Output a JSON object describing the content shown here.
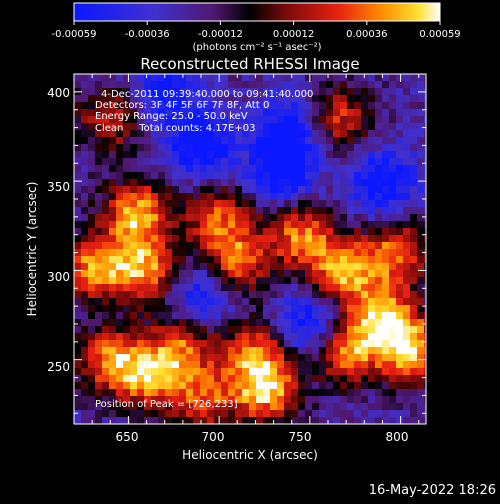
{
  "chart_data": {
    "type": "heatmap",
    "title": "Reconstructed RHESSI Image",
    "xlabel": "Heliocentric X (arcsec)",
    "ylabel": "Heliocentric Y (arcsec)",
    "xlim": [
      620,
      814
    ],
    "ylim": [
      214,
      410
    ],
    "x_ticks": [
      650,
      700,
      750,
      800
    ],
    "y_ticks": [
      250,
      300,
      350,
      400
    ],
    "colorbar": {
      "ticks": [
        "-0.00059",
        "-0.00036",
        "-0.00012",
        "0.00012",
        "0.00036",
        "0.00059"
      ],
      "range": [
        -0.00059,
        0.00059
      ],
      "unit_label": "(photons cm⁻² s⁻¹ asec⁻²)"
    },
    "annotations": [
      "4-Dec-2011 09:39:40.000 to 09:41:40.000",
      "Detectors: 3F 4F 5F 6F 7F 8F, Att 0",
      "Energy Range: 25.0 - 50.0 keV",
      "Clean     Total counts: 4.17E+03",
      "Position of Peak = [726,233]"
    ],
    "hotspots": [
      {
        "x": 655,
        "y": 332,
        "v": 0.00058
      },
      {
        "x": 632,
        "y": 302,
        "v": 0.00055
      },
      {
        "x": 660,
        "y": 300,
        "v": 0.00052
      },
      {
        "x": 640,
        "y": 250,
        "v": 0.00048
      },
      {
        "x": 662,
        "y": 240,
        "v": 0.0005
      },
      {
        "x": 680,
        "y": 258,
        "v": 0.0004
      },
      {
        "x": 700,
        "y": 330,
        "v": 0.0004
      },
      {
        "x": 710,
        "y": 305,
        "v": 0.00045
      },
      {
        "x": 720,
        "y": 255,
        "v": 0.0004
      },
      {
        "x": 726,
        "y": 233,
        "v": 0.00059
      },
      {
        "x": 745,
        "y": 320,
        "v": 0.00048
      },
      {
        "x": 768,
        "y": 300,
        "v": 0.00055
      },
      {
        "x": 770,
        "y": 255,
        "v": 0.0005
      },
      {
        "x": 790,
        "y": 275,
        "v": 0.00056
      },
      {
        "x": 805,
        "y": 255,
        "v": 0.00059
      },
      {
        "x": 798,
        "y": 310,
        "v": 0.00045
      },
      {
        "x": 765,
        "y": 385,
        "v": 0.0004
      },
      {
        "x": 640,
        "y": 385,
        "v": 0.00035
      },
      {
        "x": 692,
        "y": 228,
        "v": 0.00038
      }
    ],
    "coldspots": [
      {
        "x": 690,
        "y": 370,
        "v": -0.0004
      },
      {
        "x": 735,
        "y": 355,
        "v": -0.00038
      },
      {
        "x": 790,
        "y": 350,
        "v": -0.00035
      },
      {
        "x": 690,
        "y": 285,
        "v": -0.0003
      },
      {
        "x": 750,
        "y": 270,
        "v": -0.00035
      },
      {
        "x": 740,
        "y": 380,
        "v": -0.00035
      },
      {
        "x": 670,
        "y": 400,
        "v": -0.0003
      }
    ]
  },
  "footer": {
    "timestamp": "16-May-2022 18:26"
  }
}
